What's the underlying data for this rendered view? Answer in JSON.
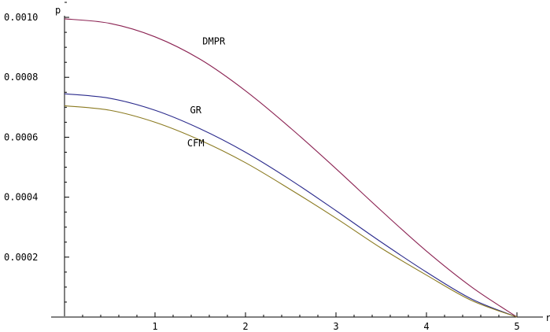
{
  "chart_data": {
    "type": "line",
    "title": "",
    "xlabel": "r",
    "ylabel": "p",
    "xlim": [
      0,
      5
    ],
    "ylim": [
      0,
      0.00105
    ],
    "x_ticks": [
      {
        "value": 1,
        "label": "1"
      },
      {
        "value": 2,
        "label": "2"
      },
      {
        "value": 3,
        "label": "3"
      },
      {
        "value": 4,
        "label": "4"
      },
      {
        "value": 5,
        "label": "5"
      }
    ],
    "y_ticks": [
      {
        "value": 0.0002,
        "label": "0.0002"
      },
      {
        "value": 0.0004,
        "label": "0.0004"
      },
      {
        "value": 0.0006,
        "label": "0.0006"
      },
      {
        "value": 0.0008,
        "label": "0.0008"
      },
      {
        "value": 0.001,
        "label": "0.0010"
      }
    ],
    "grid": false,
    "series": [
      {
        "name": "DMPR",
        "color": "#8b2252",
        "label_at": [
          1.65,
          0.00091
        ],
        "x": [
          0,
          0.5,
          1,
          1.5,
          2,
          2.5,
          3,
          3.5,
          4,
          4.5,
          5
        ],
        "y": [
          0.000995,
          0.00098,
          0.000935,
          0.00086,
          0.000755,
          0.00063,
          0.000495,
          0.000355,
          0.00022,
          0.0001,
          0
        ]
      },
      {
        "name": "GR",
        "color": "#2a2a8c",
        "label_at": [
          1.45,
          0.00068
        ],
        "x": [
          0,
          0.5,
          1,
          1.5,
          2,
          2.5,
          3,
          3.5,
          4,
          4.5,
          5
        ],
        "y": [
          0.000745,
          0.00073,
          0.00069,
          0.000628,
          0.00055,
          0.000457,
          0.000355,
          0.00025,
          0.00015,
          6e-05,
          0
        ]
      },
      {
        "name": "CFM",
        "color": "#8b7a20",
        "label_at": [
          1.45,
          0.00057
        ],
        "x": [
          0,
          0.5,
          1,
          1.5,
          2,
          2.5,
          3,
          3.5,
          4,
          4.5,
          5
        ],
        "y": [
          0.000705,
          0.00069,
          0.00065,
          0.00059,
          0.000515,
          0.000425,
          0.00033,
          0.00023,
          0.00014,
          5.5e-05,
          0
        ]
      }
    ]
  }
}
